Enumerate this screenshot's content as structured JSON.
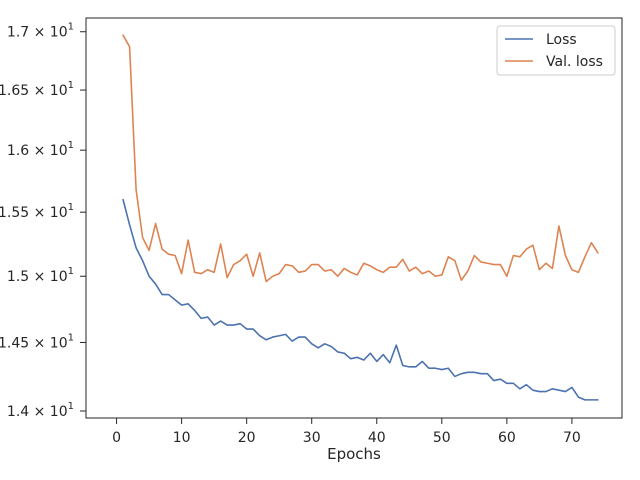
{
  "chart_data": {
    "type": "line",
    "xlabel": "Epochs",
    "ylabel": "",
    "title": "",
    "xlim": [
      -4.7,
      77.7
    ],
    "ylim": [
      13.95,
      17.12
    ],
    "yscale": "log",
    "x_ticks": [
      0,
      10,
      20,
      30,
      40,
      50,
      60,
      70
    ],
    "x_tick_labels": [
      "0",
      "10",
      "20",
      "30",
      "40",
      "50",
      "60",
      "70"
    ],
    "y_ticks": [
      14.0,
      14.5,
      15.0,
      15.5,
      16.0,
      16.5,
      17.0
    ],
    "y_tick_labels": [
      {
        "mant": "1.4",
        "base": "10",
        "exp": "1"
      },
      {
        "mant": "1.45",
        "base": "10",
        "exp": "1"
      },
      {
        "mant": "1.5",
        "base": "10",
        "exp": "1"
      },
      {
        "mant": "1.55",
        "base": "10",
        "exp": "1"
      },
      {
        "mant": "1.6",
        "base": "10",
        "exp": "1"
      },
      {
        "mant": "1.65",
        "base": "10",
        "exp": "1"
      },
      {
        "mant": "1.7",
        "base": "10",
        "exp": "1"
      }
    ],
    "legend": {
      "position": "top-right"
    },
    "x": [
      1,
      2,
      3,
      4,
      5,
      6,
      7,
      8,
      9,
      10,
      11,
      12,
      13,
      14,
      15,
      16,
      17,
      18,
      19,
      20,
      21,
      22,
      23,
      24,
      25,
      26,
      27,
      28,
      29,
      30,
      31,
      32,
      33,
      34,
      35,
      36,
      37,
      38,
      39,
      40,
      41,
      42,
      43,
      44,
      45,
      46,
      47,
      48,
      49,
      50,
      51,
      52,
      53,
      54,
      55,
      56,
      57,
      58,
      59,
      60,
      61,
      62,
      63,
      64,
      65,
      66,
      67,
      68,
      69,
      70,
      71,
      72,
      73,
      74
    ],
    "series": [
      {
        "name": "Loss",
        "color": "#4c72b0",
        "values": [
          15.6,
          15.4,
          15.22,
          15.12,
          15.0,
          14.94,
          14.86,
          14.86,
          14.82,
          14.78,
          14.79,
          14.74,
          14.68,
          14.69,
          14.63,
          14.66,
          14.63,
          14.63,
          14.64,
          14.6,
          14.6,
          14.55,
          14.52,
          14.54,
          14.55,
          14.56,
          14.51,
          14.54,
          14.54,
          14.49,
          14.46,
          14.49,
          14.47,
          14.43,
          14.42,
          14.38,
          14.39,
          14.37,
          14.42,
          14.36,
          14.41,
          14.35,
          14.48,
          14.33,
          14.32,
          14.32,
          14.36,
          14.31,
          14.31,
          14.3,
          14.31,
          14.25,
          14.27,
          14.28,
          14.28,
          14.27,
          14.27,
          14.22,
          14.23,
          14.2,
          14.2,
          14.16,
          14.19,
          14.15,
          14.14,
          14.14,
          14.16,
          14.15,
          14.14,
          14.17,
          14.1,
          14.08,
          14.08,
          14.08
        ]
      },
      {
        "name": "Val. loss",
        "color": "#dd8452",
        "values": [
          16.97,
          16.87,
          15.68,
          15.3,
          15.2,
          15.41,
          15.21,
          15.17,
          15.16,
          15.02,
          15.28,
          15.03,
          15.02,
          15.05,
          15.03,
          15.25,
          14.99,
          15.09,
          15.12,
          15.17,
          15.0,
          15.18,
          14.96,
          15.0,
          15.02,
          15.09,
          15.08,
          15.03,
          15.04,
          15.09,
          15.09,
          15.04,
          15.05,
          15.0,
          15.06,
          15.03,
          15.01,
          15.1,
          15.08,
          15.05,
          15.03,
          15.07,
          15.07,
          15.13,
          15.04,
          15.07,
          15.02,
          15.04,
          15.0,
          15.01,
          15.15,
          15.12,
          14.97,
          15.04,
          15.16,
          15.11,
          15.1,
          15.09,
          15.09,
          15.0,
          15.16,
          15.15,
          15.21,
          15.24,
          15.05,
          15.1,
          15.06,
          15.39,
          15.16,
          15.05,
          15.03,
          15.15,
          15.26,
          15.18
        ]
      }
    ]
  }
}
